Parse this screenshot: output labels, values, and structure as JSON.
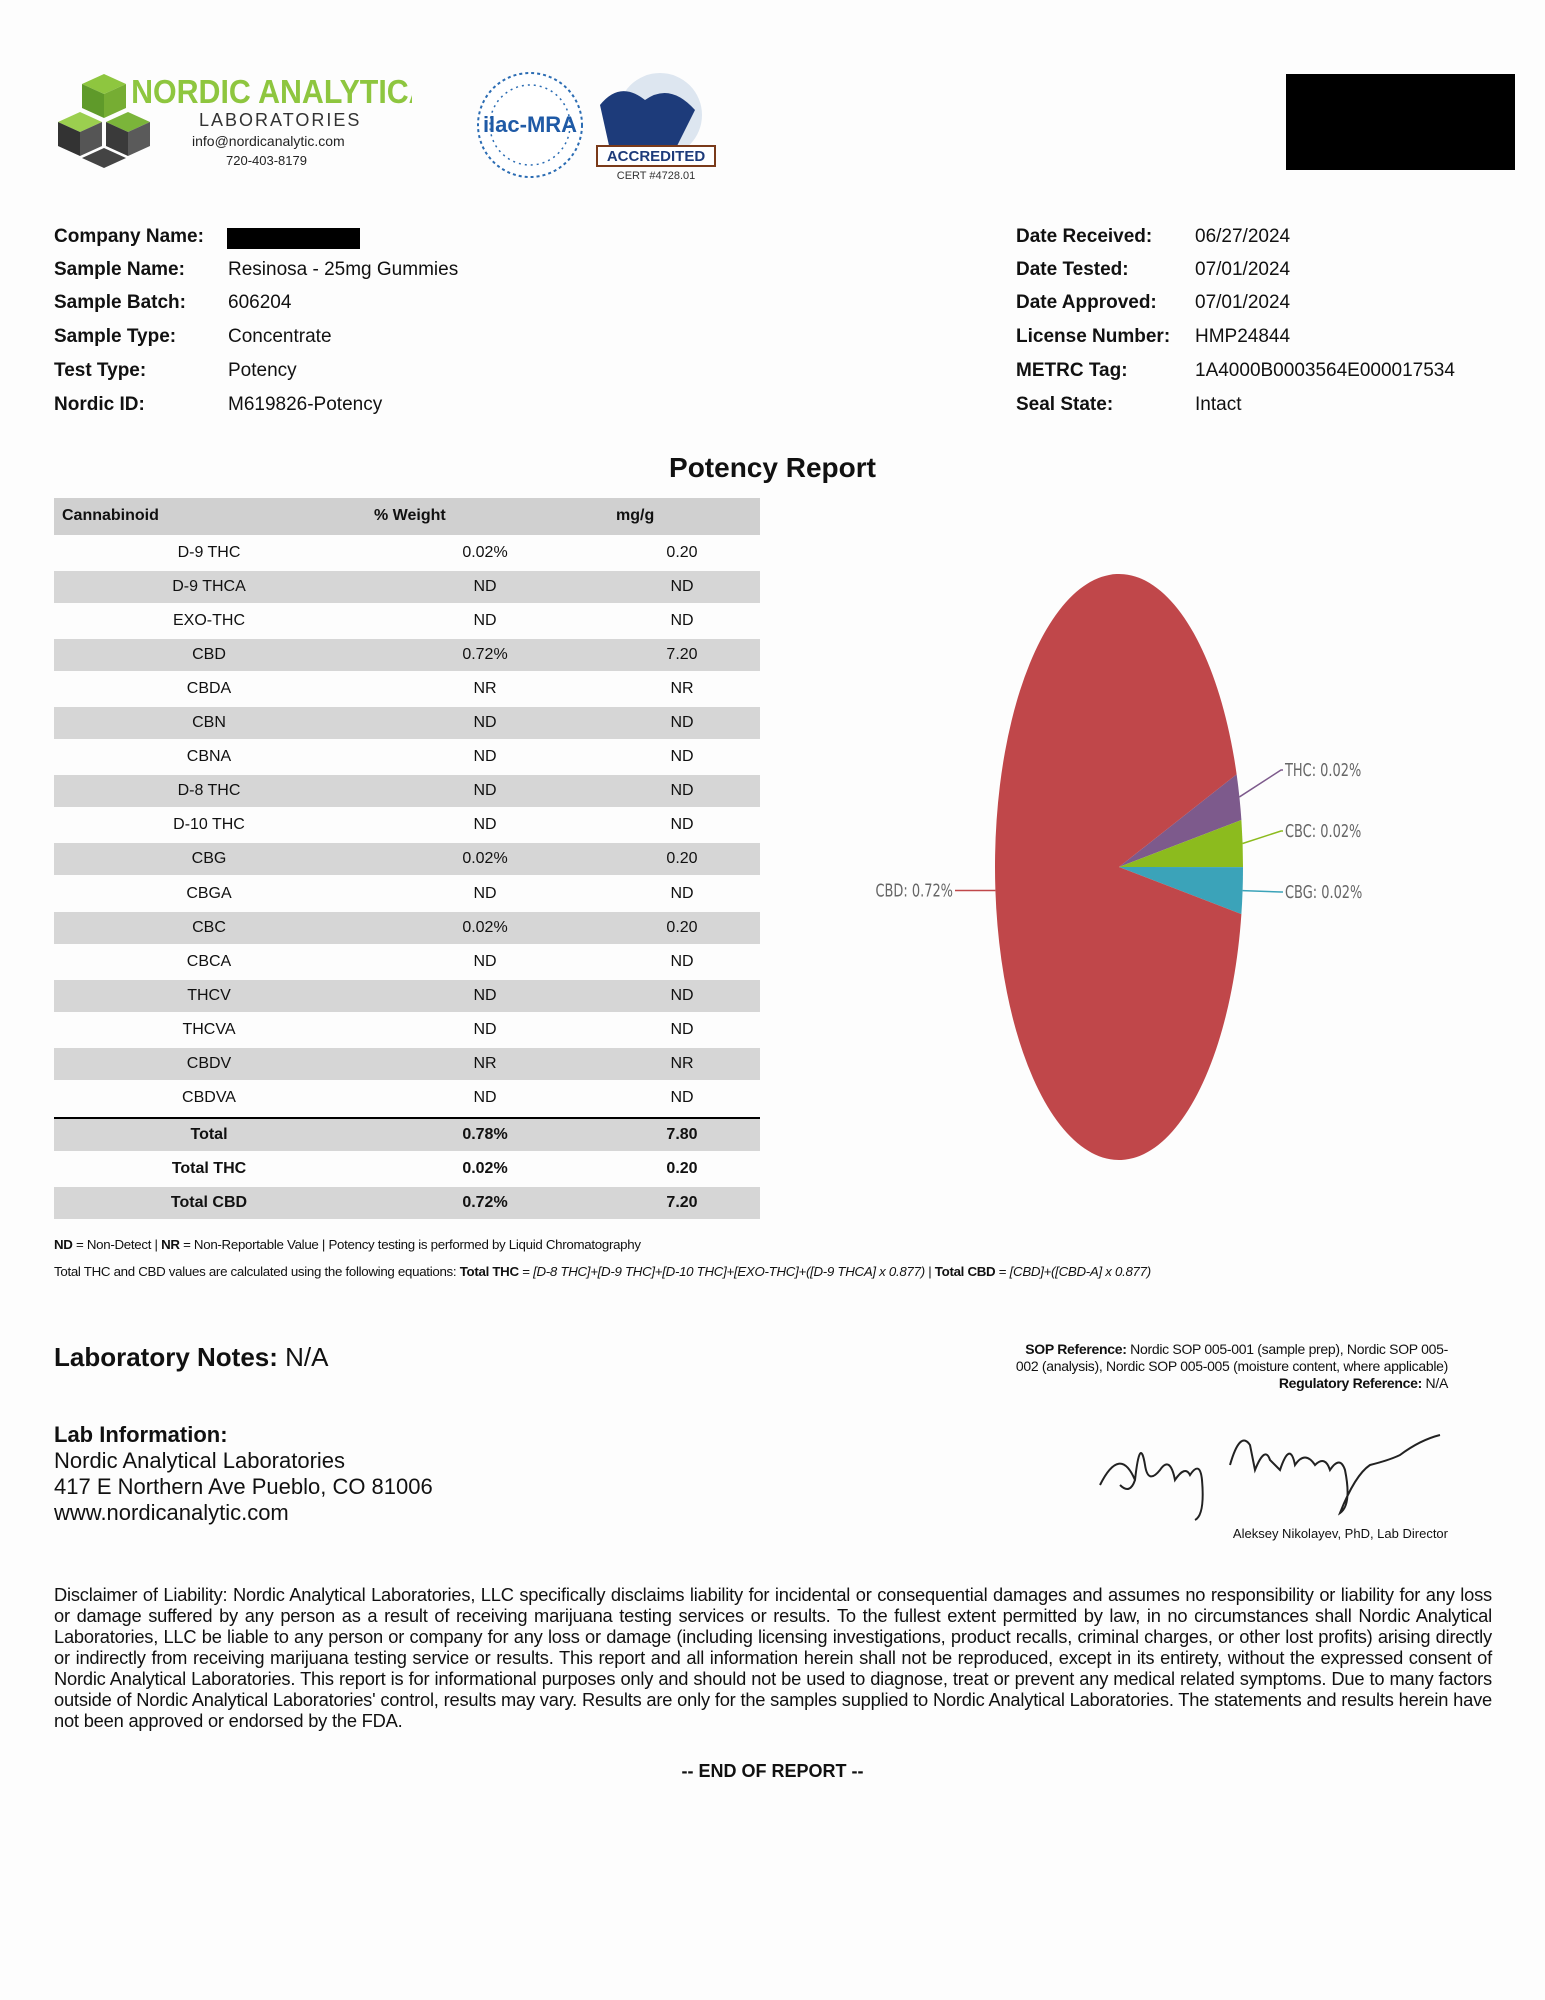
{
  "header": {
    "logo_name": "NORDIC ANALYTICAL",
    "logo_sub": "LABORATORIES",
    "email": "info@nordicanalytic.com",
    "phone": "720-403-8179",
    "ilac": "ilac-MRA",
    "accredited": "ACCREDITED",
    "cert": "CERT #4728.01"
  },
  "sample_info": {
    "left": [
      {
        "label": "Company Name:"
      },
      {
        "label": "Sample Name:",
        "value": "Resinosa - 25mg Gummies"
      },
      {
        "label": "Sample Batch:",
        "value": "606204"
      },
      {
        "label": "Sample Type:",
        "value": "Concentrate"
      },
      {
        "label": "Test Type:",
        "value": "Potency"
      },
      {
        "label": "Nordic ID:",
        "value": "M619826-Potency"
      }
    ],
    "right": [
      {
        "label": "Date Received:",
        "value": "06/27/2024"
      },
      {
        "label": "Date Tested:",
        "value": "07/01/2024"
      },
      {
        "label": "Date Approved:",
        "value": "07/01/2024"
      },
      {
        "label": "License Number:",
        "value": "HMP24844"
      },
      {
        "label": "METRC Tag:",
        "value": "1A4000B0003564E000017534"
      },
      {
        "label": "Seal State:",
        "value": "Intact"
      }
    ]
  },
  "report_title": "Potency Report",
  "table": {
    "columns": [
      "Cannabinoid",
      "% Weight",
      "mg/g"
    ],
    "rows": [
      [
        "D-9 THC",
        "0.02%",
        "0.20"
      ],
      [
        "D-9 THCA",
        "ND",
        "ND"
      ],
      [
        "EXO-THC",
        "ND",
        "ND"
      ],
      [
        "CBD",
        "0.72%",
        "7.20"
      ],
      [
        "CBDA",
        "NR",
        "NR"
      ],
      [
        "CBN",
        "ND",
        "ND"
      ],
      [
        "CBNA",
        "ND",
        "ND"
      ],
      [
        "D-8 THC",
        "ND",
        "ND"
      ],
      [
        "D-10 THC",
        "ND",
        "ND"
      ],
      [
        "CBG",
        "0.02%",
        "0.20"
      ],
      [
        "CBGA",
        "ND",
        "ND"
      ],
      [
        "CBC",
        "0.02%",
        "0.20"
      ],
      [
        "CBCA",
        "ND",
        "ND"
      ],
      [
        "THCV",
        "ND",
        "ND"
      ],
      [
        "THCVA",
        "ND",
        "ND"
      ],
      [
        "CBDV",
        "NR",
        "NR"
      ],
      [
        "CBDVA",
        "ND",
        "ND"
      ]
    ],
    "totals": [
      [
        "Total",
        "0.78%",
        "7.80"
      ],
      [
        "Total THC",
        "0.02%",
        "0.20"
      ],
      [
        "Total CBD",
        "0.72%",
        "7.20"
      ]
    ]
  },
  "chart_data": {
    "type": "pie",
    "values": [
      0.02,
      0.02,
      0.02,
      0.72
    ],
    "value_labels": [
      "THC: 0.02%",
      "CBC: 0.02%",
      "CBG: 0.02%",
      "CBD: 0.72%"
    ],
    "colors": [
      "#7d5a8c",
      "#8cbb1e",
      "#3ba3b9",
      "#c0474a"
    ]
  },
  "footnotes": {
    "line1": [
      "ND",
      " = Non-Detect | ",
      "NR",
      " = Non-Reportable Value | Potency testing is performed by Liquid Chromatography"
    ],
    "line2": [
      "Total THC and CBD values are calculated using the following equations: ",
      "Total THC",
      " = ",
      "[D-8 THC]+[D-9 THC]+[D-10 THC]+[EXO-THC]+([D-9 THCA] x 0.877)",
      " | ",
      "Total CBD",
      " = ",
      "[CBD]+([CBD-A] x 0.877)"
    ]
  },
  "lab_notes": {
    "label": "Laboratory Notes:",
    "value": "N/A"
  },
  "lab_info": {
    "title": "Lab Information:",
    "lines": [
      "Nordic Analytical Laboratories",
      "417 E Northern Ave Pueblo, CO 81006",
      "www.nordicanalytic.com"
    ]
  },
  "sop": {
    "label": "SOP Reference:",
    "text": "Nordic SOP 005-001 (sample prep), Nordic SOP 005-002 (analysis), Nordic SOP 005-005 (moisture content, where applicable)",
    "reg_label": "Regulatory Reference:",
    "reg_value": "N/A"
  },
  "signature": "Aleksey Nikolayev, PhD, Lab Director",
  "disclaimer": "Disclaimer of Liability: Nordic Analytical Laboratories, LLC specifically disclaims liability for incidental or consequential damages and assumes no responsibility or liability for any loss or damage suffered by any person as a result of receiving marijuana testing services or results. To the fullest extent permitted by law, in no circumstances shall Nordic Analytical Laboratories, LLC be liable to any person or company for any loss or damage (including licensing investigations, product recalls, criminal charges, or other lost profits) arising directly or indirectly from receiving marijuana testing service or results. This report and all information herein shall not be reproduced, except in its entirety, without the expressed consent of Nordic Analytical Laboratories. This report is for informational purposes only and should not be used to diagnose, treat or prevent any medical related symptoms. Due to many factors outside of Nordic Analytical Laboratories' control, results may vary. Results are only for the samples supplied to Nordic Analytical Laboratories. The statements and results herein have not been approved or endorsed by the FDA.",
  "end": "-- END OF REPORT --"
}
